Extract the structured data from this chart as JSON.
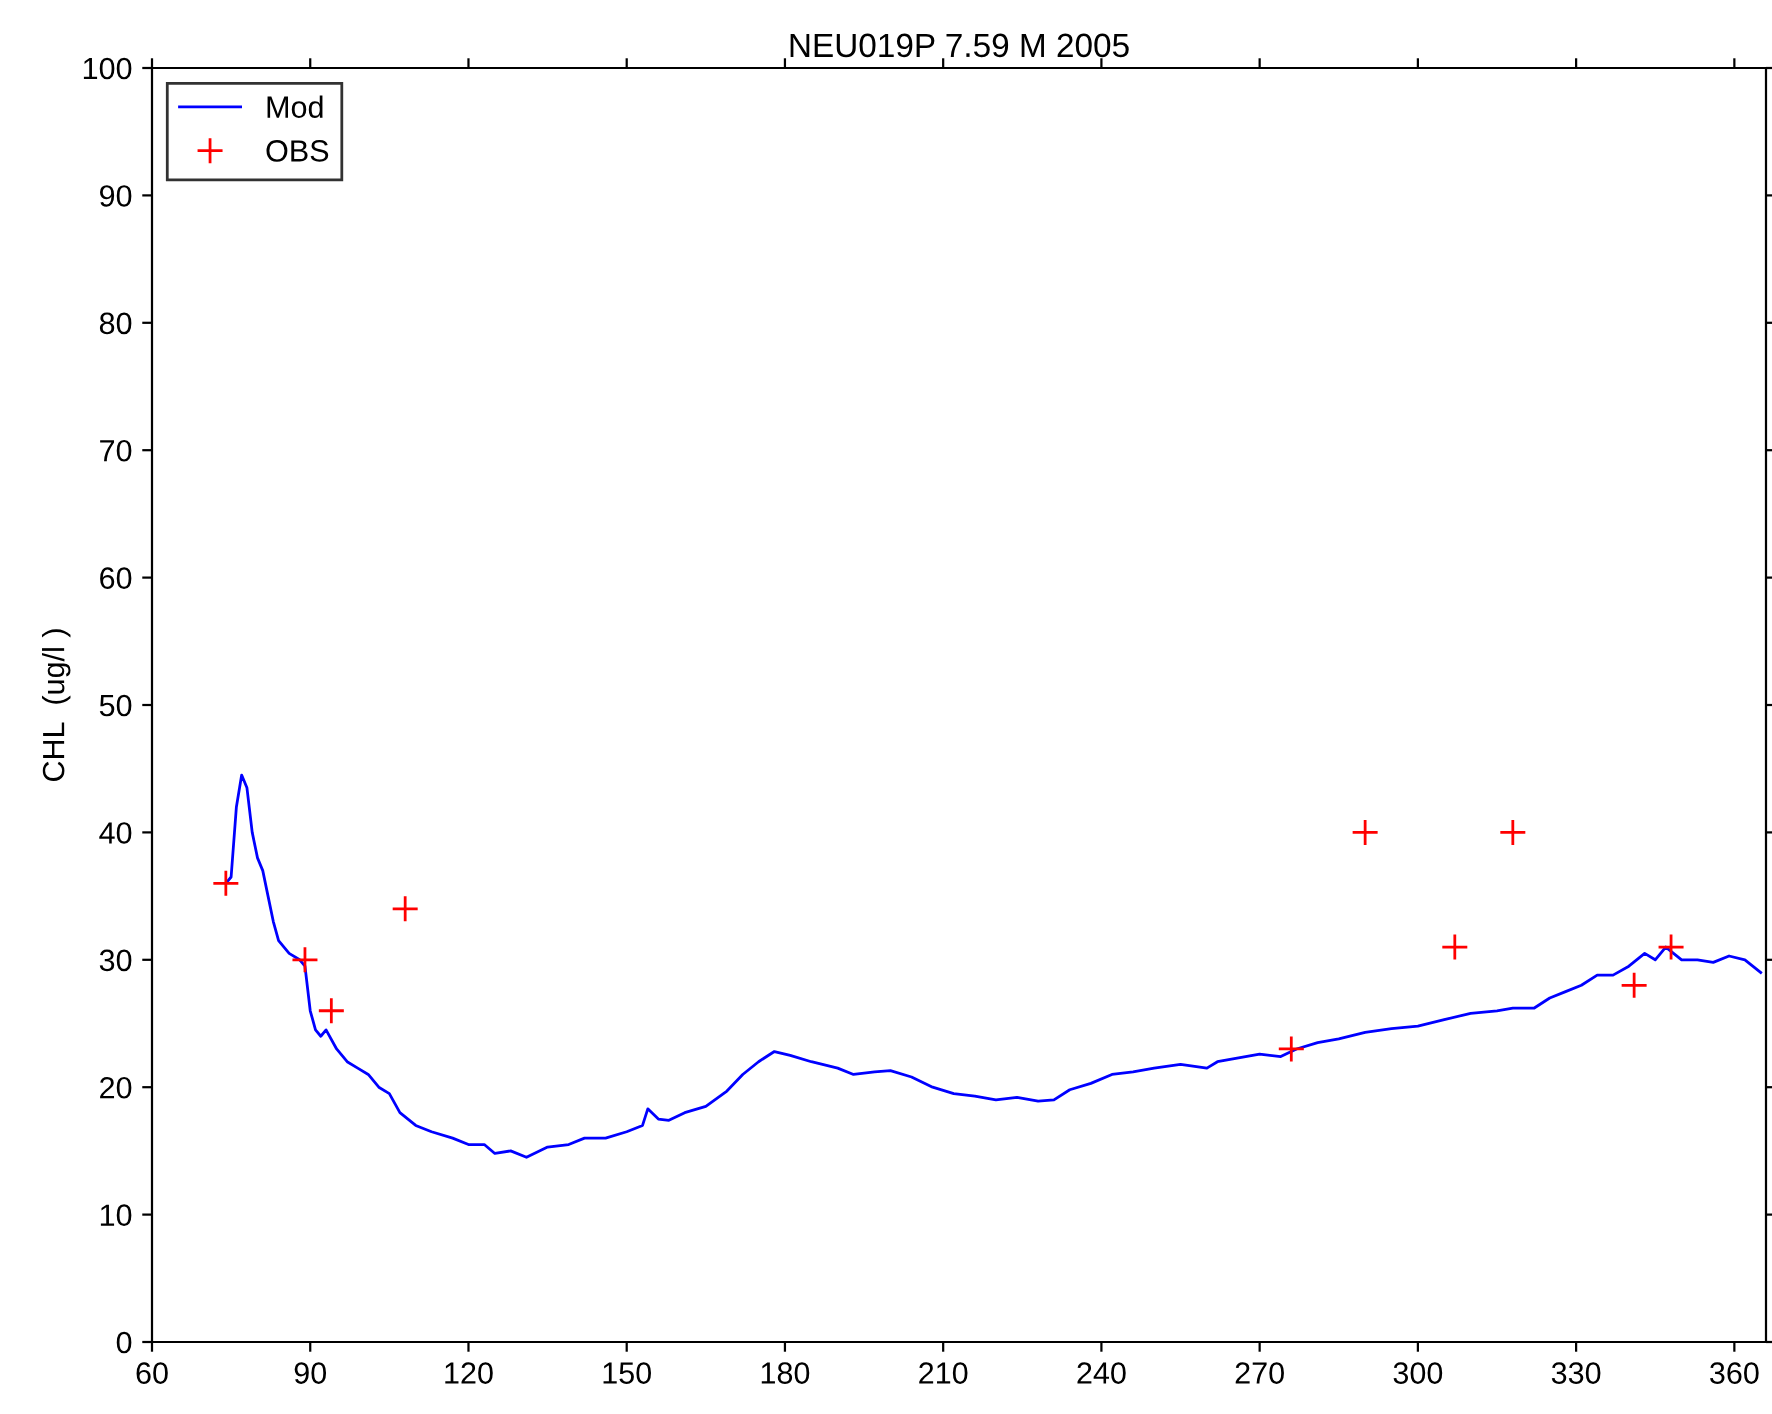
{
  "chart_data": {
    "type": "line",
    "title": "NEU019P 7.59 M 2005",
    "ylabel": "CHL  (ug/l )",
    "xlim": [
      60,
      366
    ],
    "ylim": [
      0,
      100
    ],
    "xticks": [
      60,
      90,
      120,
      150,
      180,
      210,
      240,
      270,
      300,
      330,
      360
    ],
    "yticks": [
      0,
      10,
      20,
      30,
      40,
      50,
      60,
      70,
      80,
      90,
      100
    ],
    "grid": false,
    "legend": "top left",
    "series": [
      {
        "name": "Mod",
        "color": "#0000ff",
        "marker": "none",
        "x": [
          74,
          75,
          76,
          77,
          78,
          79,
          80,
          81,
          82,
          83,
          84,
          86,
          88,
          89,
          90,
          91,
          92,
          93,
          95,
          97,
          99,
          101,
          103,
          105,
          107,
          110,
          113,
          117,
          120,
          123,
          125,
          128,
          131,
          135,
          139,
          142,
          146,
          150,
          153,
          154,
          156,
          158,
          161,
          165,
          169,
          172,
          175,
          178,
          181,
          185,
          190,
          193,
          197,
          200,
          204,
          208,
          212,
          216,
          220,
          224,
          228,
          231,
          234,
          238,
          242,
          246,
          250,
          255,
          260,
          262,
          266,
          270,
          274,
          277,
          281,
          285,
          290,
          295,
          300,
          305,
          310,
          315,
          318,
          322,
          325,
          328,
          331,
          334,
          337,
          340,
          343,
          345,
          347,
          350,
          353,
          356,
          359,
          362,
          365
        ],
        "values": [
          36,
          36.5,
          42,
          44.5,
          43.5,
          40,
          38,
          37,
          35,
          33,
          31.5,
          30.5,
          30,
          29.5,
          26,
          24.5,
          24,
          24.5,
          23,
          22,
          21.5,
          21,
          20,
          19.5,
          18,
          17,
          16.5,
          16,
          15.5,
          15.5,
          14.8,
          15,
          14.5,
          15.3,
          15.5,
          16,
          16,
          16.5,
          17,
          18.3,
          17.5,
          17.4,
          18,
          18.5,
          19.7,
          21,
          22,
          22.8,
          22.5,
          22,
          21.5,
          21,
          21.2,
          21.3,
          20.8,
          20,
          19.5,
          19.3,
          19,
          19.2,
          18.9,
          19,
          19.8,
          20.3,
          21,
          21.2,
          21.5,
          21.8,
          21.5,
          22,
          22.3,
          22.6,
          22.4,
          23,
          23.5,
          23.8,
          24.3,
          24.6,
          24.8,
          25.3,
          25.8,
          26,
          26.2,
          26.2,
          27,
          27.5,
          28,
          28.8,
          28.8,
          29.5,
          30.5,
          30,
          31,
          30,
          30,
          29.8,
          30.3,
          30,
          29
        ]
      },
      {
        "name": "OBS",
        "type": "scatter",
        "color": "#ff0000",
        "marker": "cross",
        "x": [
          74,
          89,
          94,
          108,
          276,
          290,
          307,
          318,
          341,
          348
        ],
        "values": [
          36,
          30,
          26,
          34,
          23,
          40,
          31,
          40,
          28,
          31
        ]
      }
    ]
  }
}
